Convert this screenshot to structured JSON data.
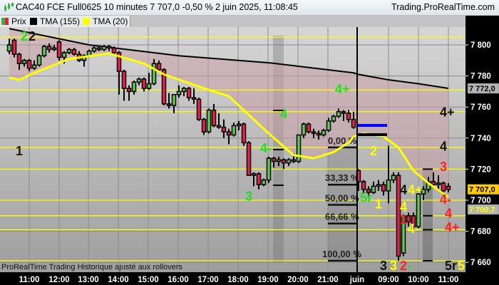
{
  "header": {
    "title": "CAC40 FCE Full0625 10 minutes 7 707,0 -0,50 % 2 juin 2025, 11:08:45",
    "site": "Trading.ProRealTime.com",
    "logo_icon": "candlestick-icon"
  },
  "legend": [
    {
      "label": "Prix",
      "colors": [
        "#3cb043",
        "#e8213c"
      ]
    },
    {
      "label": "TMA (155)",
      "colors": [
        "#000000"
      ]
    },
    {
      "label": "TMA (20)",
      "colors": [
        "#ffff00"
      ]
    }
  ],
  "footer": "ProRealTime Trading  Historique ajusté aux rollovers",
  "colors": {
    "up": "#5ccc4c",
    "down": "#ee2050",
    "tma155": "#000000",
    "tma20": "#ffff00",
    "fill": "#c9a0a6",
    "level": "#ffff00",
    "blue_bar": "#0000ff"
  },
  "chart_data": {
    "type": "candlestick",
    "instrument": "CAC40 FCE Full0625",
    "ylim": [
      7652,
      7815
    ],
    "y_ticks": [
      "7 660",
      "7 680",
      "7 700",
      "7 720",
      "7 740",
      "7 760",
      "7 780",
      "7 800"
    ],
    "y_tick_values": [
      7660,
      7680,
      7700,
      7720,
      7740,
      7760,
      7780,
      7800
    ],
    "x_ticks": [
      "11:00",
      "12:00",
      "13:00",
      "14:00",
      "15:00",
      "16:00",
      "17:00",
      "18:00",
      "19:00",
      "20:00",
      "21:00",
      "juin",
      "09:00",
      "10:00",
      "11:00"
    ],
    "grid": true,
    "price_tags": [
      {
        "text": "7 772,0",
        "value": 7772.0,
        "style": "grey"
      },
      {
        "text": "7 707,0",
        "value": 7707.0,
        "style": "yellow"
      },
      {
        "text": "7 700,7",
        "value": 7700.7,
        "style": "grey-yellow-text"
      }
    ],
    "sessions": [
      {
        "day": "",
        "candles": [
          [
            "10:20",
            7796,
            7804,
            7794,
            7800
          ],
          [
            "10:30",
            7803,
            7804,
            7792,
            7794
          ],
          [
            "10:40",
            7794,
            7795,
            7784,
            7788
          ],
          [
            "10:50",
            7788,
            7791,
            7786,
            7790
          ],
          [
            "11:00",
            7790,
            7791,
            7783,
            7785
          ],
          [
            "11:10",
            7785,
            7790,
            7784,
            7787
          ],
          [
            "11:20",
            7787,
            7794,
            7786,
            7793
          ],
          [
            "11:30",
            7793,
            7800,
            7792,
            7799
          ],
          [
            "11:40",
            7799,
            7801,
            7795,
            7797
          ],
          [
            "11:50",
            7797,
            7800,
            7796,
            7798
          ],
          [
            "12:00",
            7802,
            7803,
            7790,
            7792
          ],
          [
            "12:10",
            7792,
            7796,
            7788,
            7795
          ],
          [
            "12:20",
            7795,
            7798,
            7794,
            7797
          ],
          [
            "12:30",
            7797,
            7798,
            7793,
            7794
          ],
          [
            "12:40",
            7794,
            7796,
            7789,
            7790
          ],
          [
            "12:50",
            7790,
            7794,
            7786,
            7793
          ],
          [
            "13:00",
            7793,
            7797,
            7792,
            7796
          ],
          [
            "13:10",
            7796,
            7799,
            7795,
            7798
          ],
          [
            "13:20",
            7798,
            7799,
            7796,
            7797
          ],
          [
            "13:30",
            7797,
            7800,
            7796,
            7799
          ],
          [
            "13:40",
            7799,
            7800,
            7796,
            7798
          ],
          [
            "13:50",
            7798,
            7799,
            7793,
            7795
          ],
          [
            "14:00",
            7795,
            7796,
            7768,
            7783
          ],
          [
            "14:10",
            7783,
            7784,
            7764,
            7772
          ],
          [
            "14:20",
            7772,
            7774,
            7764,
            7770
          ],
          [
            "14:30",
            7770,
            7777,
            7768,
            7776
          ],
          [
            "14:40",
            7776,
            7779,
            7774,
            7778
          ],
          [
            "14:50",
            7778,
            7779,
            7770,
            7772
          ],
          [
            "15:00",
            7772,
            7782,
            7771,
            7775
          ],
          [
            "15:10",
            7775,
            7791,
            7774,
            7788
          ],
          [
            "15:20",
            7788,
            7790,
            7782,
            7784
          ],
          [
            "15:30",
            7784,
            7785,
            7761,
            7762
          ],
          [
            "15:40",
            7762,
            7769,
            7759,
            7761
          ],
          [
            "15:50",
            7761,
            7768,
            7756,
            7768
          ],
          [
            "16:00",
            7768,
            7774,
            7766,
            7770
          ],
          [
            "16:10",
            7770,
            7773,
            7767,
            7772
          ],
          [
            "16:20",
            7772,
            7773,
            7764,
            7766
          ],
          [
            "16:30",
            7766,
            7772,
            7762,
            7765
          ],
          [
            "16:40",
            7765,
            7766,
            7751,
            7752
          ],
          [
            "16:50",
            7752,
            7753,
            7742,
            7744
          ],
          [
            "17:00",
            7744,
            7759,
            7743,
            7758
          ],
          [
            "17:10",
            7758,
            7762,
            7747,
            7748
          ],
          [
            "17:20",
            7748,
            7756,
            7746,
            7747
          ],
          [
            "17:30",
            7747,
            7752,
            7740,
            7744
          ],
          [
            "17:40",
            7744,
            7746,
            7736,
            7742
          ],
          [
            "17:50",
            7742,
            7750,
            7741,
            7748
          ],
          [
            "18:00",
            7748,
            7751,
            7745,
            7749
          ],
          [
            "18:10",
            7749,
            7750,
            7735,
            7737
          ],
          [
            "18:20",
            7737,
            7738,
            7716,
            7716
          ],
          [
            "18:30",
            7716,
            7718,
            7709,
            7717
          ],
          [
            "18:40",
            7717,
            7718,
            7707,
            7710
          ],
          [
            "18:50",
            7710,
            7714,
            7709,
            7713
          ],
          [
            "19:00",
            7713,
            7728,
            7711,
            7727
          ],
          [
            "19:10",
            7727,
            7728,
            7721,
            7725
          ],
          [
            "19:20",
            7725,
            7728,
            7722,
            7726
          ],
          [
            "19:30",
            7726,
            7727,
            7720,
            7724
          ],
          [
            "19:40",
            7724,
            7727,
            7722,
            7726
          ],
          [
            "19:50",
            7726,
            7730,
            7724,
            7725
          ],
          [
            "20:00",
            7725,
            7742,
            7724,
            7742
          ],
          [
            "20:10",
            7742,
            7750,
            7740,
            7749
          ],
          [
            "20:20",
            7749,
            7750,
            7743,
            7744
          ],
          [
            "20:30",
            7744,
            7746,
            7740,
            7743
          ],
          [
            "20:40",
            7743,
            7745,
            7739,
            7742
          ],
          [
            "20:50",
            7742,
            7746,
            7741,
            7745
          ],
          [
            "21:00",
            7745,
            7753,
            7744,
            7751
          ],
          [
            "21:10",
            7751,
            7755,
            7750,
            7754
          ],
          [
            "21:20",
            7754,
            7759,
            7753,
            7757
          ],
          [
            "21:30",
            7757,
            7758,
            7751,
            7756
          ],
          [
            "21:40",
            7756,
            7758,
            7750,
            7752
          ],
          [
            "21:50",
            7752,
            7757,
            7746,
            7747
          ]
        ]
      },
      {
        "day": "juin",
        "candles": [
          [
            "08:00",
            7719,
            7720,
            7706,
            7712
          ],
          [
            "08:10",
            7712,
            7713,
            7704,
            7707
          ],
          [
            "08:20",
            7707,
            7709,
            7702,
            7705
          ],
          [
            "08:30",
            7705,
            7712,
            7704,
            7709
          ],
          [
            "08:40",
            7709,
            7713,
            7706,
            7710
          ],
          [
            "08:50",
            7710,
            7712,
            7703,
            7706
          ],
          [
            "09:00",
            7706,
            7735,
            7698,
            7713
          ],
          [
            "09:10",
            7713,
            7718,
            7711,
            7716
          ],
          [
            "09:20",
            7716,
            7718,
            7661,
            7664
          ],
          [
            "09:30",
            7666,
            7691,
            7664,
            7690
          ],
          [
            "09:40",
            7690,
            7692,
            7683,
            7686
          ],
          [
            "09:50",
            7690,
            7692,
            7681,
            7683
          ],
          [
            "10:00",
            7683,
            7706,
            7682,
            7704
          ],
          [
            "10:10",
            7704,
            7709,
            7700,
            7707
          ],
          [
            "10:20",
            7707,
            7715,
            7705,
            7712
          ],
          [
            "10:30",
            7712,
            7718,
            7708,
            7710
          ],
          [
            "10:40",
            7710,
            7716,
            7707,
            7711
          ],
          [
            "10:50",
            7711,
            7712,
            7703,
            7706
          ],
          [
            "11:00",
            7709,
            7711,
            7705,
            7707
          ]
        ]
      }
    ],
    "tma155": [
      [
        0,
        "10:20",
        7810.5
      ],
      [
        0,
        "13:00",
        7800
      ],
      [
        0,
        "16:00",
        7793
      ],
      [
        0,
        "19:00",
        7788.5
      ],
      [
        0,
        "21:50",
        7782
      ],
      [
        1,
        "08:00",
        7781
      ],
      [
        1,
        "09:00",
        7777.5
      ],
      [
        1,
        "10:00",
        7775
      ],
      [
        1,
        "11:00",
        7772
      ]
    ],
    "tma20": [
      [
        0,
        "10:20",
        7779
      ],
      [
        0,
        "10:40",
        7777.5
      ],
      [
        0,
        "11:10",
        7782
      ],
      [
        0,
        "12:20",
        7791
      ],
      [
        0,
        "13:40",
        7794.5
      ],
      [
        0,
        "14:50",
        7788
      ],
      [
        0,
        "15:30",
        7781
      ],
      [
        0,
        "17:00",
        7771
      ],
      [
        0,
        "17:40",
        7767
      ],
      [
        0,
        "18:20",
        7755
      ],
      [
        0,
        "19:00",
        7743
      ],
      [
        0,
        "19:50",
        7729
      ],
      [
        0,
        "20:30",
        7727
      ],
      [
        0,
        "21:10",
        7731
      ],
      [
        0,
        "21:40",
        7737
      ],
      [
        0,
        "21:50",
        7741
      ],
      [
        1,
        "08:10",
        7743
      ],
      [
        1,
        "08:50",
        7741
      ],
      [
        1,
        "09:20",
        7734
      ],
      [
        1,
        "09:50",
        7719
      ],
      [
        1,
        "10:20",
        7711
      ],
      [
        1,
        "11:00",
        7702
      ]
    ],
    "levels": [
      7805,
      7771,
      7757,
      7734,
      7720,
      7700,
      7690,
      7681,
      7661
    ],
    "fibonacci": [
      {
        "label": "0,00 %",
        "value": 7734
      },
      {
        "label": "33,33 %",
        "value": 7710
      },
      {
        "label": "50,00 %",
        "value": 7697
      },
      {
        "label": "66,66 %",
        "value": 7685
      },
      {
        "label": "100,00 %",
        "value": 7661
      }
    ],
    "annotations": [
      {
        "text": "2",
        "color": "#22dd22",
        "s": 0,
        "t": "10:50",
        "v": 7806
      },
      {
        "text": "2",
        "color": "#111111",
        "s": 0,
        "t": "11:00",
        "v": 7806
      },
      {
        "text": "1",
        "color": "#2a1a00",
        "s": 0,
        "t": "10:40",
        "v": 7732
      },
      {
        "text": "3",
        "color": "#22dd22",
        "s": 0,
        "t": "18:20",
        "v": 7703
      },
      {
        "text": "4-",
        "color": "#22dd22",
        "s": 0,
        "t": "18:50",
        "v": 7734
      },
      {
        "text": "4",
        "color": "#22dd22",
        "s": 0,
        "t": "19:30",
        "v": 7756
      },
      {
        "text": "4+",
        "color": "#22dd22",
        "s": 0,
        "t": "21:20",
        "v": 7772
      },
      {
        "text": "5r",
        "color": "#22dd22",
        "s": 0,
        "t": "21:30",
        "v": 7702
      },
      {
        "text": "2",
        "color": "#ffff00",
        "s": 1,
        "t": "08:30",
        "v": 7732
      },
      {
        "text": "1",
        "color": "#ffff00",
        "s": 1,
        "t": "08:40",
        "v": 7698
      },
      {
        "text": "4",
        "color": "#111111",
        "s": 1,
        "t": "09:30",
        "v": 7707
      },
      {
        "text": "4+",
        "color": "#ffff00",
        "s": 1,
        "t": "09:40",
        "v": 7707
      },
      {
        "text": "4",
        "color": "#ffff00",
        "s": 1,
        "t": "09:30",
        "v": 7696
      },
      {
        "text": "1",
        "color": "#ff2020",
        "s": 1,
        "t": "09:30",
        "v": 7688
      },
      {
        "text": "4-",
        "color": "#ffff00",
        "s": 1,
        "t": "09:20",
        "v": 7682
      },
      {
        "text": "3",
        "color": "#111111",
        "s": 1,
        "t": "08:50",
        "v": 7655
      },
      {
        "text": "3",
        "color": "#ffff00",
        "s": 1,
        "t": "09:10",
        "v": 7654
      },
      {
        "text": "2",
        "color": "#ff2020",
        "s": 1,
        "t": "09:30",
        "v": 7655
      },
      {
        "text": "-",
        "color": "#22dd22",
        "s": 1,
        "t": "09:30",
        "v": 7648
      },
      {
        "text": "4+",
        "color": "#111111",
        "s": 1,
        "t": "10:50",
        "v": 7757
      },
      {
        "text": "4",
        "color": "#111111",
        "s": 1,
        "t": "10:50",
        "v": 7735
      },
      {
        "text": "3",
        "color": "#ff2020",
        "s": 1,
        "t": "10:50",
        "v": 7722
      },
      {
        "text": "4-",
        "color": "#ff2020",
        "s": 1,
        "t": "10:50",
        "v": 7701
      },
      {
        "text": "4",
        "color": "#ff2020",
        "s": 1,
        "t": "11:00",
        "v": 7692
      },
      {
        "text": "4+",
        "color": "#ff2020",
        "s": 1,
        "t": "11:00",
        "v": 7683
      },
      {
        "text": "5r",
        "color": "#111111",
        "s": 1,
        "t": "11:00",
        "v": 7655
      },
      {
        "text": "5",
        "color": "#ffff00",
        "s": 1,
        "t": "11:10",
        "v": 7655
      }
    ]
  }
}
